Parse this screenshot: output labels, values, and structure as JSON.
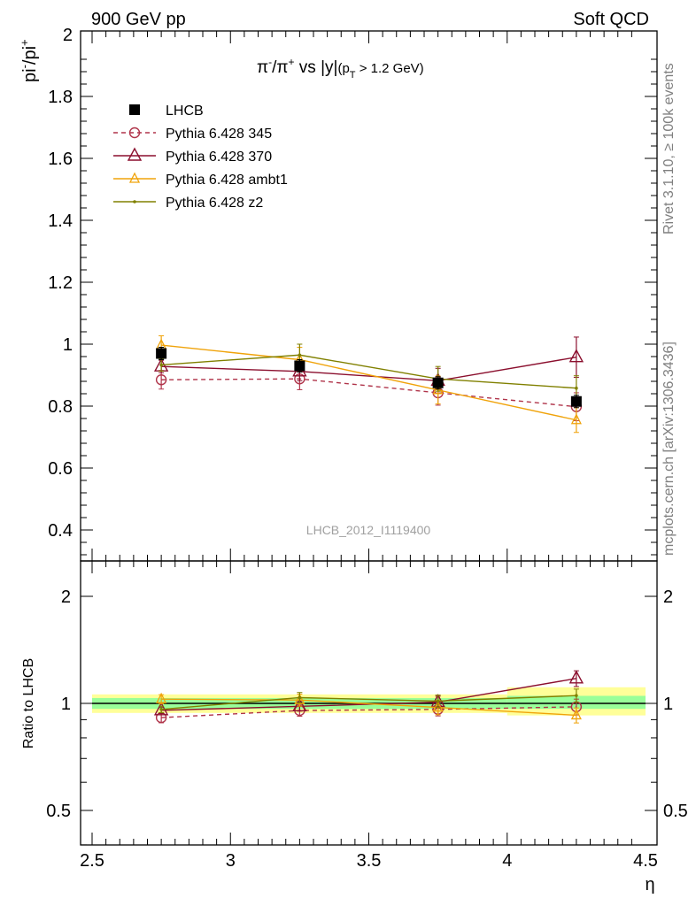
{
  "header": {
    "left": "900 GeV pp",
    "right": "Soft QCD"
  },
  "side_labels": {
    "rivet": "Rivet 3.1.10, ≥ 100k events",
    "mcplots": "mcplots.cern.ch [arXiv:1306.3436]"
  },
  "chart_data": [
    {
      "type": "line",
      "title_main": "π",
      "title_sup1": "-",
      "title_mid": "/π",
      "title_sup2": "+",
      "title_rest": " vs |y|",
      "title_sub": "(p",
      "title_sub_t": "T",
      "title_cut": " > 1.2 GeV)",
      "ylabel": "pi",
      "ylabel_sup1": "-",
      "ylabel_mid": "/pi",
      "ylabel_sup2": "+",
      "watermark": "LHCB_2012_I1119400",
      "xlim": [
        2.5,
        4.5
      ],
      "ylim": [
        0.32,
        2.0
      ],
      "yticks": [
        "0.4",
        "0.6",
        "0.8",
        "1",
        "1.2",
        "1.4",
        "1.6",
        "1.8",
        "2"
      ],
      "x": [
        2.75,
        3.25,
        3.75,
        4.25
      ],
      "series": [
        {
          "name": "LHCB",
          "color": "#000000",
          "style": "data",
          "values": [
            0.97,
            0.93,
            0.875,
            0.815
          ],
          "errors": [
            0.02,
            0.02,
            0.02,
            0.02
          ]
        },
        {
          "name": "Pythia 6.428 345",
          "color": "#b0344a",
          "style": "dashed-circle",
          "values": [
            0.885,
            0.888,
            0.843,
            0.798
          ],
          "errors": [
            0.03,
            0.035,
            0.04,
            0.045
          ]
        },
        {
          "name": "Pythia 6.428 370",
          "color": "#8b0f2e",
          "style": "solid-triangle-big",
          "values": [
            0.928,
            0.912,
            0.882,
            0.958
          ],
          "errors": [
            0.02,
            0.03,
            0.04,
            0.065
          ]
        },
        {
          "name": "Pythia 6.428 ambt1",
          "color": "#f0a30a",
          "style": "solid-triangle-small",
          "values": [
            0.997,
            0.95,
            0.852,
            0.755
          ],
          "errors": [
            0.03,
            0.04,
            0.045,
            0.04
          ]
        },
        {
          "name": "Pythia 6.428 z2",
          "color": "#808000",
          "style": "solid-dot",
          "values": [
            0.933,
            0.965,
            0.888,
            0.858
          ],
          "errors": [
            0.02,
            0.035,
            0.04,
            0.04
          ]
        }
      ]
    },
    {
      "type": "line",
      "ylabel": "Ratio to LHCB",
      "xlabel": "η",
      "xlim": [
        2.5,
        4.5
      ],
      "ylim": [
        0.38,
        2.4
      ],
      "log_y": true,
      "yticks": [
        "0.5",
        "1",
        "2"
      ],
      "xticks": [
        "2.5",
        "3",
        "3.5",
        "4",
        "4.5"
      ],
      "band_green": [
        [
          2.5,
          4.0,
          0.965,
          1.035
        ],
        [
          4.0,
          4.5,
          0.965,
          1.05
        ]
      ],
      "band_yellow": [
        [
          2.5,
          4.0,
          0.94,
          1.06
        ],
        [
          4.0,
          4.5,
          0.925,
          1.11
        ]
      ],
      "series": [
        {
          "name": "Pythia 6.428 345",
          "values": [
            0.912,
            0.955,
            0.962,
            0.978
          ],
          "errors": [
            0.03,
            0.035,
            0.04,
            0.05
          ]
        },
        {
          "name": "Pythia 6.428 370",
          "values": [
            0.956,
            0.981,
            1.008,
            1.175
          ],
          "errors": [
            0.02,
            0.03,
            0.04,
            0.06
          ]
        },
        {
          "name": "Pythia 6.428 ambt1",
          "values": [
            1.028,
            1.022,
            0.974,
            0.926
          ],
          "errors": [
            0.03,
            0.04,
            0.045,
            0.045
          ]
        },
        {
          "name": "Pythia 6.428 z2",
          "values": [
            0.962,
            1.038,
            1.015,
            1.052
          ],
          "errors": [
            0.02,
            0.035,
            0.04,
            0.045
          ]
        }
      ]
    }
  ]
}
